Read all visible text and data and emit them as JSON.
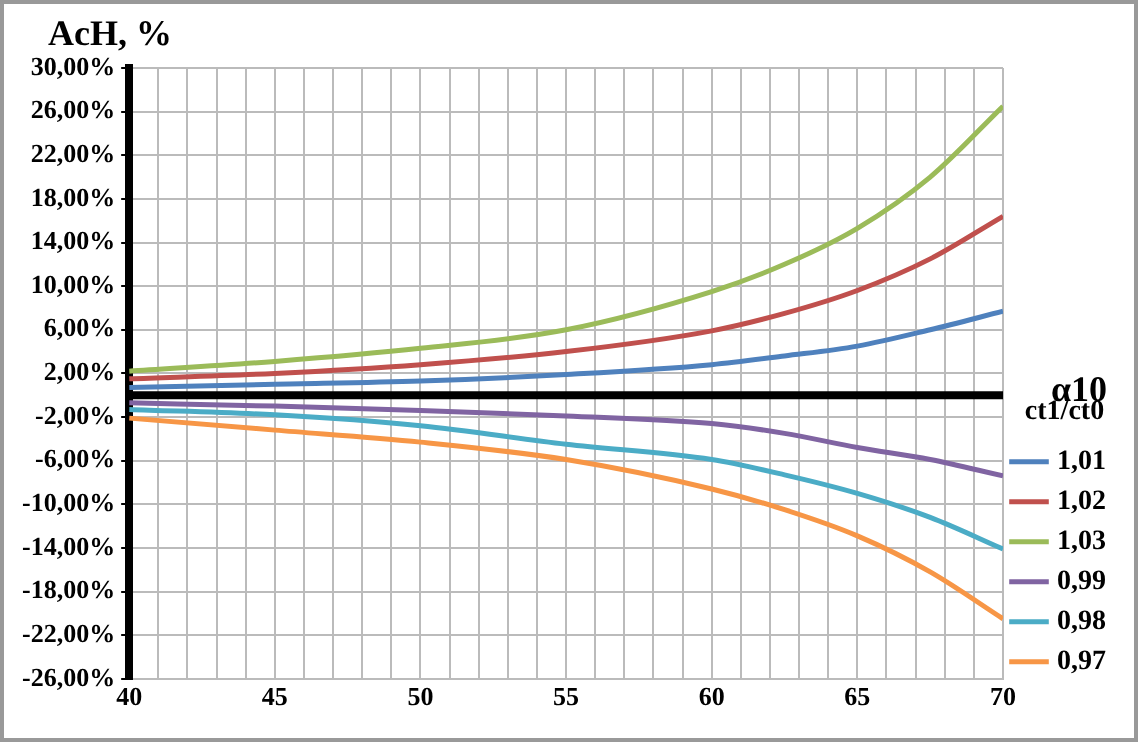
{
  "chart_data": {
    "type": "line",
    "ylabel": "AcH, %",
    "xlabel": "α10",
    "legend_title": "ct1/ct0",
    "x": [
      40,
      45,
      50,
      55,
      60,
      62.5,
      65,
      67.5,
      70
    ],
    "series": [
      {
        "name": "1,01",
        "color": "#4f81bd",
        "values": [
          0.7,
          1.0,
          1.3,
          1.9,
          2.8,
          3.6,
          4.5,
          6.0,
          7.7
        ]
      },
      {
        "name": "1,02",
        "color": "#c0504d",
        "values": [
          1.5,
          2.0,
          2.8,
          4.0,
          5.9,
          7.5,
          9.6,
          12.5,
          16.4
        ]
      },
      {
        "name": "1,03",
        "color": "#9bbb59",
        "values": [
          2.2,
          3.1,
          4.3,
          6.0,
          9.5,
          12.0,
          15.3,
          20.0,
          26.5
        ]
      },
      {
        "name": "0,99",
        "color": "#8064a2",
        "values": [
          -0.7,
          -1.0,
          -1.4,
          -1.9,
          -2.6,
          -3.5,
          -4.8,
          -5.9,
          -7.4
        ]
      },
      {
        "name": "0,98",
        "color": "#4bacc6",
        "values": [
          -1.3,
          -1.8,
          -2.8,
          -4.5,
          -5.9,
          -7.3,
          -9.0,
          -11.2,
          -14.1
        ]
      },
      {
        "name": "0,97",
        "color": "#f79646",
        "values": [
          -2.1,
          -3.2,
          -4.3,
          -5.9,
          -8.6,
          -10.5,
          -12.9,
          -16.2,
          -20.5
        ]
      }
    ],
    "xlim": [
      40,
      70
    ],
    "xticks": [
      40,
      {
        "value": 41,
        "label": null
      },
      {
        "value": 42,
        "label": null
      },
      {
        "value": 43,
        "label": null
      },
      {
        "value": 44,
        "label": null
      },
      45,
      {
        "value": 46,
        "label": null
      },
      {
        "value": 47,
        "label": null
      },
      {
        "value": 48,
        "label": null
      },
      {
        "value": 49,
        "label": null
      },
      50,
      {
        "value": 51,
        "label": null
      },
      {
        "value": 52,
        "label": null
      },
      {
        "value": 53,
        "label": null
      },
      {
        "value": 54,
        "label": null
      },
      55,
      {
        "value": 56,
        "label": null
      },
      {
        "value": 57,
        "label": null
      },
      {
        "value": 58,
        "label": null
      },
      {
        "value": 59,
        "label": null
      },
      60,
      {
        "value": 61,
        "label": null
      },
      {
        "value": 62,
        "label": null
      },
      {
        "value": 63,
        "label": null
      },
      {
        "value": 64,
        "label": null
      },
      65,
      {
        "value": 66,
        "label": null
      },
      {
        "value": 67,
        "label": null
      },
      {
        "value": 68,
        "label": null
      },
      {
        "value": 69,
        "label": null
      },
      70
    ],
    "ylim": [
      -26,
      30
    ],
    "yticks": [
      {
        "value": 30,
        "label": "30,00%"
      },
      {
        "value": 26,
        "label": "26,00%"
      },
      {
        "value": 22,
        "label": "22,00%"
      },
      {
        "value": 18,
        "label": "18,00%"
      },
      {
        "value": 14,
        "label": "14,00%"
      },
      {
        "value": 10,
        "label": "10,00%"
      },
      {
        "value": 6,
        "label": "6,00%"
      },
      {
        "value": 2,
        "label": "2,00%"
      },
      {
        "value": -2,
        "label": "-2,00%"
      },
      {
        "value": -6,
        "label": "-6,00%"
      },
      {
        "value": -10,
        "label": "-10,00%"
      },
      {
        "value": -14,
        "label": "-14,00%"
      },
      {
        "value": -18,
        "label": "-18,00%"
      },
      {
        "value": -22,
        "label": "-22,00%"
      },
      {
        "value": -26,
        "label": "-26,00%"
      }
    ],
    "ref_lines": [
      {
        "axis": "y",
        "value": 0,
        "color": "#000000"
      }
    ],
    "grid": true,
    "legend": "right",
    "marker": "none",
    "line_style": "solid"
  }
}
